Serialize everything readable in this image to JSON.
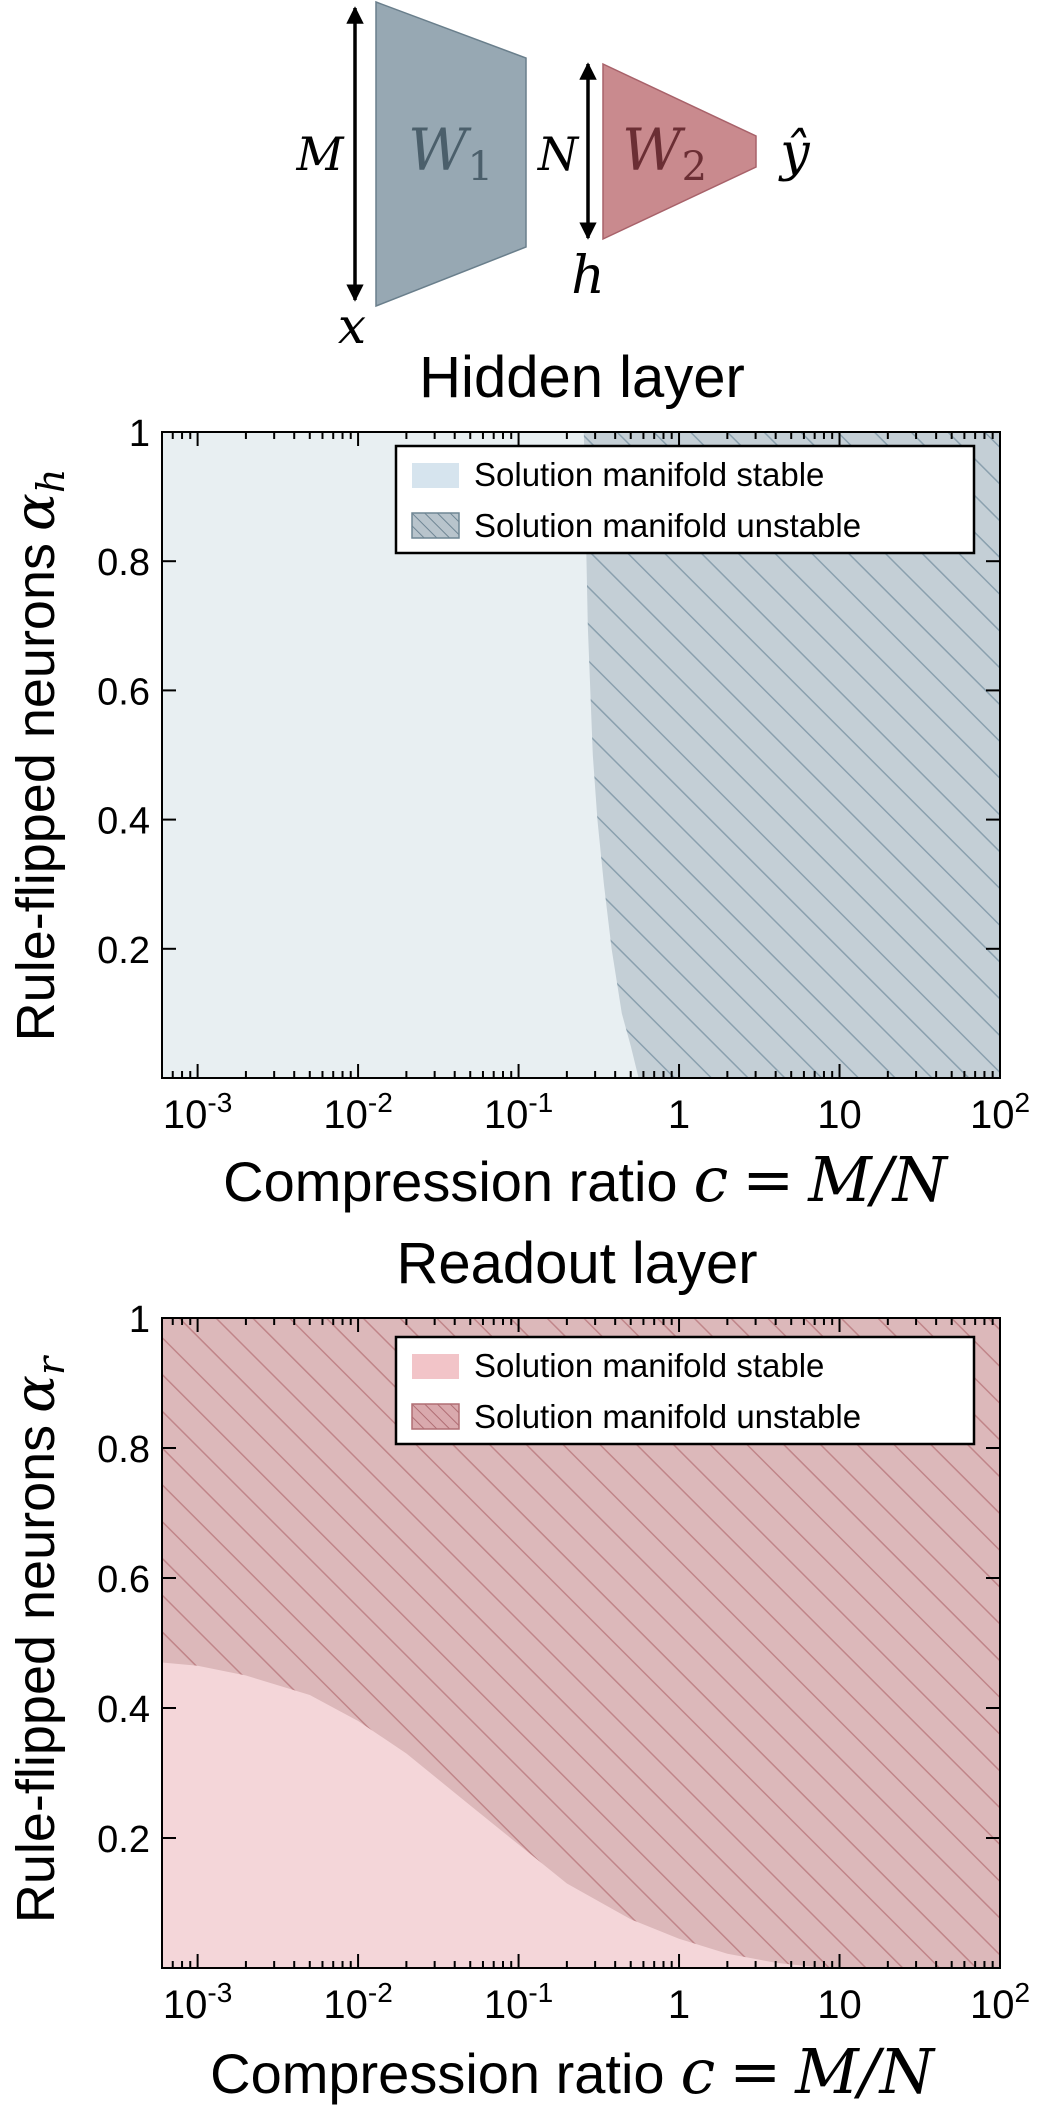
{
  "diagram": {
    "label_M": "M",
    "label_x": "x",
    "label_W1_base": "W",
    "label_W1_sub": "1",
    "label_N": "N",
    "label_h": "h",
    "label_W2_base": "W",
    "label_W2_sub": "2",
    "label_yhat": "ŷ",
    "colors": {
      "w1": "#97a8b3",
      "w1_edge": "#6a7f8c",
      "w2": "#c98a8e",
      "w2_edge": "#a8626a"
    }
  },
  "chart_data": [
    {
      "type": "area",
      "title": "Hidden layer",
      "xlabel": "Compression ratio",
      "xlabel_math_lhs": "c",
      "xlabel_math_eq": "=",
      "xlabel_math_rhs": "M/N",
      "ylabel": "Rule-flipped neurons",
      "ylabel_math_base": "α",
      "ylabel_math_sub": "h",
      "xscale": "log",
      "xlim": [
        0.0006,
        100
      ],
      "ylim": [
        0,
        1
      ],
      "x_ticks": [
        {
          "value": 0.001,
          "base": "10",
          "exp": "-3"
        },
        {
          "value": 0.01,
          "base": "10",
          "exp": "-2"
        },
        {
          "value": 0.1,
          "base": "10",
          "exp": "-1"
        },
        {
          "value": 1,
          "base": "1",
          "exp": ""
        },
        {
          "value": 10,
          "base": "10",
          "exp": ""
        },
        {
          "value": 100,
          "base": "10",
          "exp": "2"
        }
      ],
      "y_ticks": [
        {
          "value": 0.2,
          "label": "0.2"
        },
        {
          "value": 0.4,
          "label": "0.4"
        },
        {
          "value": 0.6,
          "label": "0.6"
        },
        {
          "value": 0.8,
          "label": "0.8"
        },
        {
          "value": 1.0,
          "label": "1"
        }
      ],
      "legend": {
        "placement": "top-right",
        "entries": [
          "Solution manifold stable",
          "Solution manifold unstable"
        ]
      },
      "colors": {
        "stable": "#e8eff2",
        "unstable": "#c4cfd6",
        "hatch": "#8aa0ae",
        "legend_stable": "#d6e4ee",
        "legend_unstable": "#b8c4cc"
      },
      "boundary_orientation": "vertical",
      "boundary": [
        {
          "x": 0.56,
          "y": 0.0
        },
        {
          "x": 0.5,
          "y": 0.05
        },
        {
          "x": 0.44,
          "y": 0.1
        },
        {
          "x": 0.38,
          "y": 0.2
        },
        {
          "x": 0.34,
          "y": 0.3
        },
        {
          "x": 0.31,
          "y": 0.4
        },
        {
          "x": 0.29,
          "y": 0.5
        },
        {
          "x": 0.28,
          "y": 0.6
        },
        {
          "x": 0.27,
          "y": 0.7
        },
        {
          "x": 0.265,
          "y": 0.8
        },
        {
          "x": 0.26,
          "y": 0.9
        },
        {
          "x": 0.255,
          "y": 1.0
        }
      ]
    },
    {
      "type": "area",
      "title": "Readout layer",
      "xlabel": "Compression ratio",
      "xlabel_math_lhs": "c",
      "xlabel_math_eq": "=",
      "xlabel_math_rhs": "M/N",
      "ylabel": "Rule-flipped neurons",
      "ylabel_math_base": "α",
      "ylabel_math_sub": "r",
      "xscale": "log",
      "xlim": [
        0.0006,
        100
      ],
      "ylim": [
        0,
        1
      ],
      "x_ticks": [
        {
          "value": 0.001,
          "base": "10",
          "exp": "-3"
        },
        {
          "value": 0.01,
          "base": "10",
          "exp": "-2"
        },
        {
          "value": 0.1,
          "base": "10",
          "exp": "-1"
        },
        {
          "value": 1,
          "base": "1",
          "exp": ""
        },
        {
          "value": 10,
          "base": "10",
          "exp": ""
        },
        {
          "value": 100,
          "base": "10",
          "exp": "2"
        }
      ],
      "y_ticks": [
        {
          "value": 0.2,
          "label": "0.2"
        },
        {
          "value": 0.4,
          "label": "0.4"
        },
        {
          "value": 0.6,
          "label": "0.6"
        },
        {
          "value": 0.8,
          "label": "0.8"
        },
        {
          "value": 1.0,
          "label": "1"
        }
      ],
      "legend": {
        "placement": "top-right",
        "entries": [
          "Solution manifold stable",
          "Solution manifold unstable"
        ]
      },
      "colors": {
        "stable": "#f4d6d9",
        "unstable": "#dcb8ba",
        "hatch": "#c08589",
        "legend_stable": "#f2c4c8",
        "legend_unstable": "#d9a9ad"
      },
      "boundary_orientation": "horizontal",
      "boundary": [
        {
          "x": 0.0006,
          "y": 0.47
        },
        {
          "x": 0.001,
          "y": 0.465
        },
        {
          "x": 0.002,
          "y": 0.45
        },
        {
          "x": 0.005,
          "y": 0.42
        },
        {
          "x": 0.01,
          "y": 0.38
        },
        {
          "x": 0.02,
          "y": 0.33
        },
        {
          "x": 0.05,
          "y": 0.25
        },
        {
          "x": 0.1,
          "y": 0.19
        },
        {
          "x": 0.2,
          "y": 0.13
        },
        {
          "x": 0.5,
          "y": 0.075
        },
        {
          "x": 1,
          "y": 0.045
        },
        {
          "x": 2,
          "y": 0.022
        },
        {
          "x": 4,
          "y": 0.008
        },
        {
          "x": 8,
          "y": 0.0
        },
        {
          "x": 100,
          "y": 0.0
        }
      ]
    }
  ]
}
